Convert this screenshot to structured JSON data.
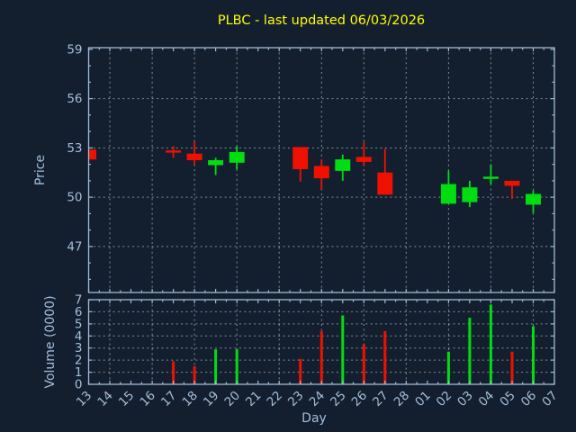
{
  "colors": {
    "background": "#131f2e",
    "spine": "#9fbad8",
    "label": "#a3bedb",
    "title": "#ffff00",
    "grid": "#a8b2bc",
    "up": "#00dd11",
    "down": "#ee1100"
  },
  "chart_data": {
    "type": "candlestick+volume",
    "title": "PLBC - last updated 06/03/2026",
    "xlabel": "Day",
    "price_panel": {
      "ylabel": "Price",
      "yticks": [
        59,
        56,
        53,
        50,
        47
      ],
      "ylim": [
        44.2,
        59.1
      ],
      "grid": "dashed"
    },
    "volume_panel": {
      "ylabel": "Volume (0000)",
      "yticks": [
        7,
        6,
        5,
        4,
        3,
        2,
        1,
        0
      ],
      "ylim": [
        0,
        7
      ],
      "grid": "dashed"
    },
    "x_categories": [
      "13",
      "14",
      "15",
      "16",
      "17",
      "18",
      "19",
      "20",
      "21",
      "22",
      "23",
      "24",
      "25",
      "26",
      "27",
      "28",
      "01",
      "02",
      "03",
      "04",
      "05",
      "06",
      "07"
    ],
    "vgrid_days": [
      "14",
      "16",
      "18",
      "20",
      "22",
      "24",
      "26",
      "28",
      "02",
      "04",
      "06"
    ],
    "candles": [
      {
        "day": "13",
        "open": 52.9,
        "high": 52.9,
        "low": 52.3,
        "close": 52.3,
        "volume": 0
      },
      {
        "day": "17",
        "open": 52.85,
        "high": 53.1,
        "low": 52.4,
        "close": 52.75,
        "volume": 1.9
      },
      {
        "day": "18",
        "open": 52.65,
        "high": 53.4,
        "low": 52.0,
        "close": 52.25,
        "volume": 1.5
      },
      {
        "day": "19",
        "open": 51.95,
        "high": 52.4,
        "low": 51.35,
        "close": 52.25,
        "volume": 2.9
      },
      {
        "day": "20",
        "open": 52.1,
        "high": 53.1,
        "low": 51.7,
        "close": 52.75,
        "volume": 2.9
      },
      {
        "day": "23",
        "open": 53.05,
        "high": 53.05,
        "low": 50.95,
        "close": 51.7,
        "volume": 2.1
      },
      {
        "day": "24",
        "open": 51.9,
        "high": 52.3,
        "low": 50.45,
        "close": 51.15,
        "volume": 4.4
      },
      {
        "day": "25",
        "open": 51.6,
        "high": 52.6,
        "low": 51.0,
        "close": 52.3,
        "volume": 5.7
      },
      {
        "day": "26",
        "open": 52.45,
        "high": 53.35,
        "low": 51.9,
        "close": 52.15,
        "volume": 3.3
      },
      {
        "day": "27",
        "open": 51.5,
        "high": 52.95,
        "low": 50.15,
        "close": 50.15,
        "volume": 4.4
      },
      {
        "day": "02",
        "open": 49.6,
        "high": 51.6,
        "low": 49.6,
        "close": 50.8,
        "volume": 2.7
      },
      {
        "day": "03",
        "open": 49.7,
        "high": 51.0,
        "low": 49.4,
        "close": 50.6,
        "volume": 5.5
      },
      {
        "day": "04",
        "open": 51.15,
        "high": 52.0,
        "low": 50.8,
        "close": 51.25,
        "volume": 6.6
      },
      {
        "day": "05",
        "open": 51.0,
        "high": 51.0,
        "low": 49.9,
        "close": 50.7,
        "volume": 2.7
      },
      {
        "day": "06",
        "open": 49.55,
        "high": 50.4,
        "low": 49.05,
        "close": 50.2,
        "volume": 4.8
      }
    ]
  }
}
